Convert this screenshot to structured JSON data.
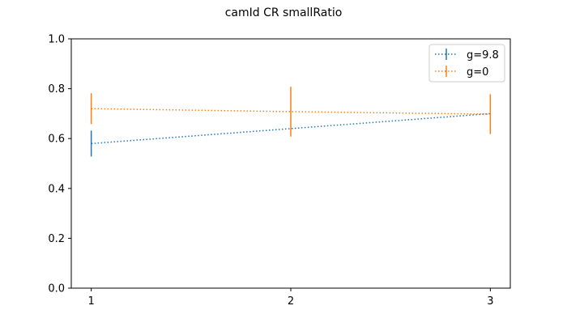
{
  "chart_data": {
    "type": "line",
    "title": "camId CR smallRatio",
    "xlabel": "",
    "ylabel": "",
    "x": [
      1,
      2,
      3
    ],
    "xticks": [
      "1",
      "2",
      "3"
    ],
    "xlim": [
      0.9,
      3.1
    ],
    "ylim": [
      0.0,
      1.0
    ],
    "yticks": [
      "0.0",
      "0.2",
      "0.4",
      "0.6",
      "0.8",
      "1.0"
    ],
    "grid": false,
    "legend_position": "top-right",
    "series": [
      {
        "name": "g=9.8",
        "color": "#1f77b4",
        "values": [
          0.58,
          0.64,
          0.7
        ],
        "errors": [
          0.052,
          0.0,
          0.0
        ]
      },
      {
        "name": "g=0",
        "color": "#ff7f0e",
        "values": [
          0.72,
          0.708,
          0.698
        ],
        "errors": [
          0.062,
          0.1,
          0.08
        ]
      }
    ]
  }
}
